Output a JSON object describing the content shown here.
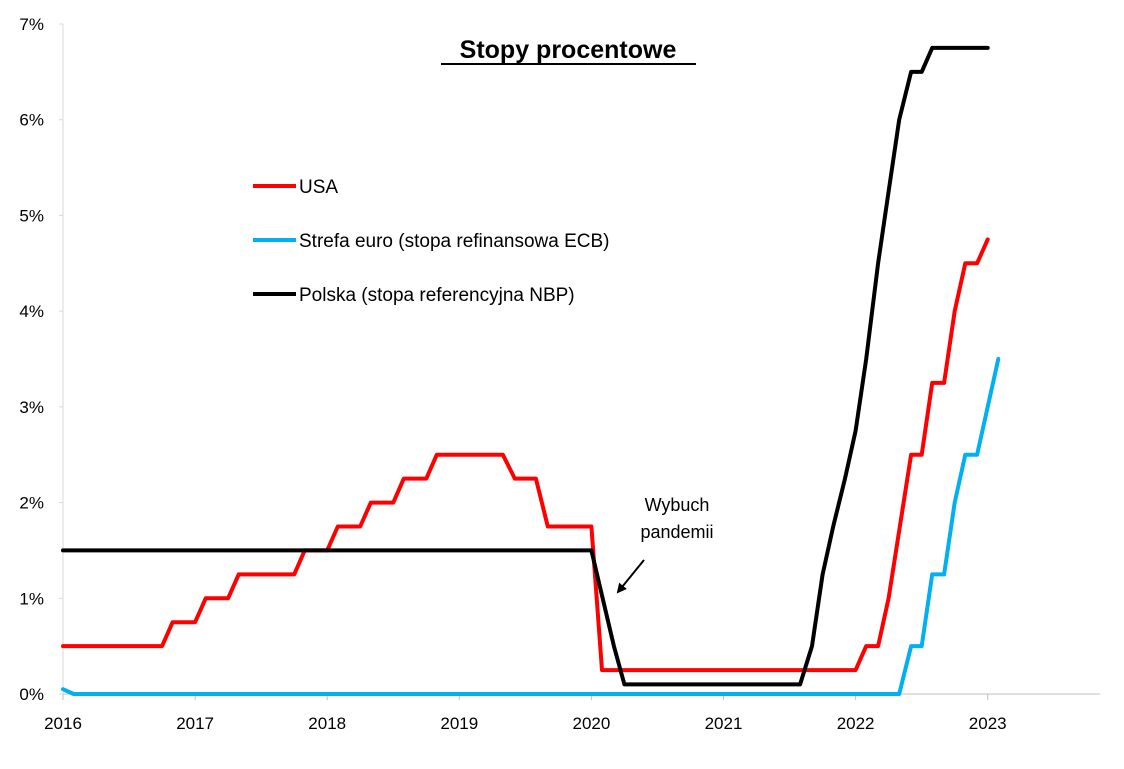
{
  "chart_data": {
    "type": "line",
    "title": "Stopy procentowe",
    "xlabel": "",
    "ylabel": "",
    "xlim": [
      2016,
      2023.85
    ],
    "ylim": [
      0,
      7
    ],
    "x_ticks": [
      2016,
      2017,
      2018,
      2019,
      2020,
      2021,
      2022,
      2023
    ],
    "x_tick_labels": [
      "2016",
      "2017",
      "2018",
      "2019",
      "2020",
      "2021",
      "2022",
      "2023"
    ],
    "y_ticks": [
      0,
      1,
      2,
      3,
      4,
      5,
      6,
      7
    ],
    "y_tick_labels": [
      "0%",
      "1%",
      "2%",
      "3%",
      "4%",
      "5%",
      "6%",
      "7%"
    ],
    "legend_position": "upper-left",
    "series": [
      {
        "name": "USA",
        "color": "#ff0000",
        "x": [
          2016.0,
          2016.75,
          2016.83,
          2017.0,
          2017.08,
          2017.25,
          2017.33,
          2017.75,
          2017.83,
          2018.0,
          2018.08,
          2018.25,
          2018.33,
          2018.5,
          2018.58,
          2018.75,
          2018.83,
          2019.33,
          2019.42,
          2019.58,
          2019.67,
          2020.0,
          2020.08,
          2021.5,
          2021.75,
          2022.0,
          2022.08,
          2022.17,
          2022.25,
          2022.42,
          2022.5,
          2022.58,
          2022.67,
          2022.75,
          2022.83,
          2022.92,
          2023.0
        ],
        "values": [
          0.5,
          0.5,
          0.75,
          0.75,
          1.0,
          1.0,
          1.25,
          1.25,
          1.5,
          1.5,
          1.75,
          1.75,
          2.0,
          2.0,
          2.25,
          2.25,
          2.5,
          2.5,
          2.25,
          2.25,
          1.75,
          1.75,
          0.25,
          0.25,
          0.25,
          0.25,
          0.5,
          0.5,
          1.0,
          2.5,
          2.5,
          3.25,
          3.25,
          4.0,
          4.5,
          4.5,
          4.75
        ]
      },
      {
        "name": "Strefa euro (stopa refinansowa ECB)",
        "color": "#00b0f0",
        "x": [
          2016.0,
          2016.08,
          2021.0,
          2022.33,
          2022.42,
          2022.5,
          2022.58,
          2022.67,
          2022.75,
          2022.83,
          2022.92,
          2023.08
        ],
        "values": [
          0.05,
          0.0,
          0.0,
          0.0,
          0.5,
          0.5,
          1.25,
          1.25,
          2.0,
          2.5,
          2.5,
          3.5
        ]
      },
      {
        "name": "Polska (stopa referencyjna NBP)",
        "color": "#000000",
        "x": [
          2016.0,
          2020.0,
          2020.17,
          2020.25,
          2020.42,
          2021.58,
          2021.67,
          2021.75,
          2021.83,
          2021.92,
          2022.0,
          2022.08,
          2022.17,
          2022.25,
          2022.33,
          2022.42,
          2022.5,
          2022.58,
          2023.0
        ],
        "values": [
          1.5,
          1.5,
          0.5,
          0.1,
          0.1,
          0.1,
          0.5,
          1.25,
          1.75,
          2.25,
          2.75,
          3.5,
          4.5,
          5.25,
          6.0,
          6.5,
          6.5,
          6.75,
          6.75
        ]
      }
    ],
    "annotations": [
      {
        "text_lines": [
          "Wybuch",
          "pandemii"
        ],
        "points_to_x": 2020.17,
        "points_to_y": 1.0
      }
    ]
  }
}
